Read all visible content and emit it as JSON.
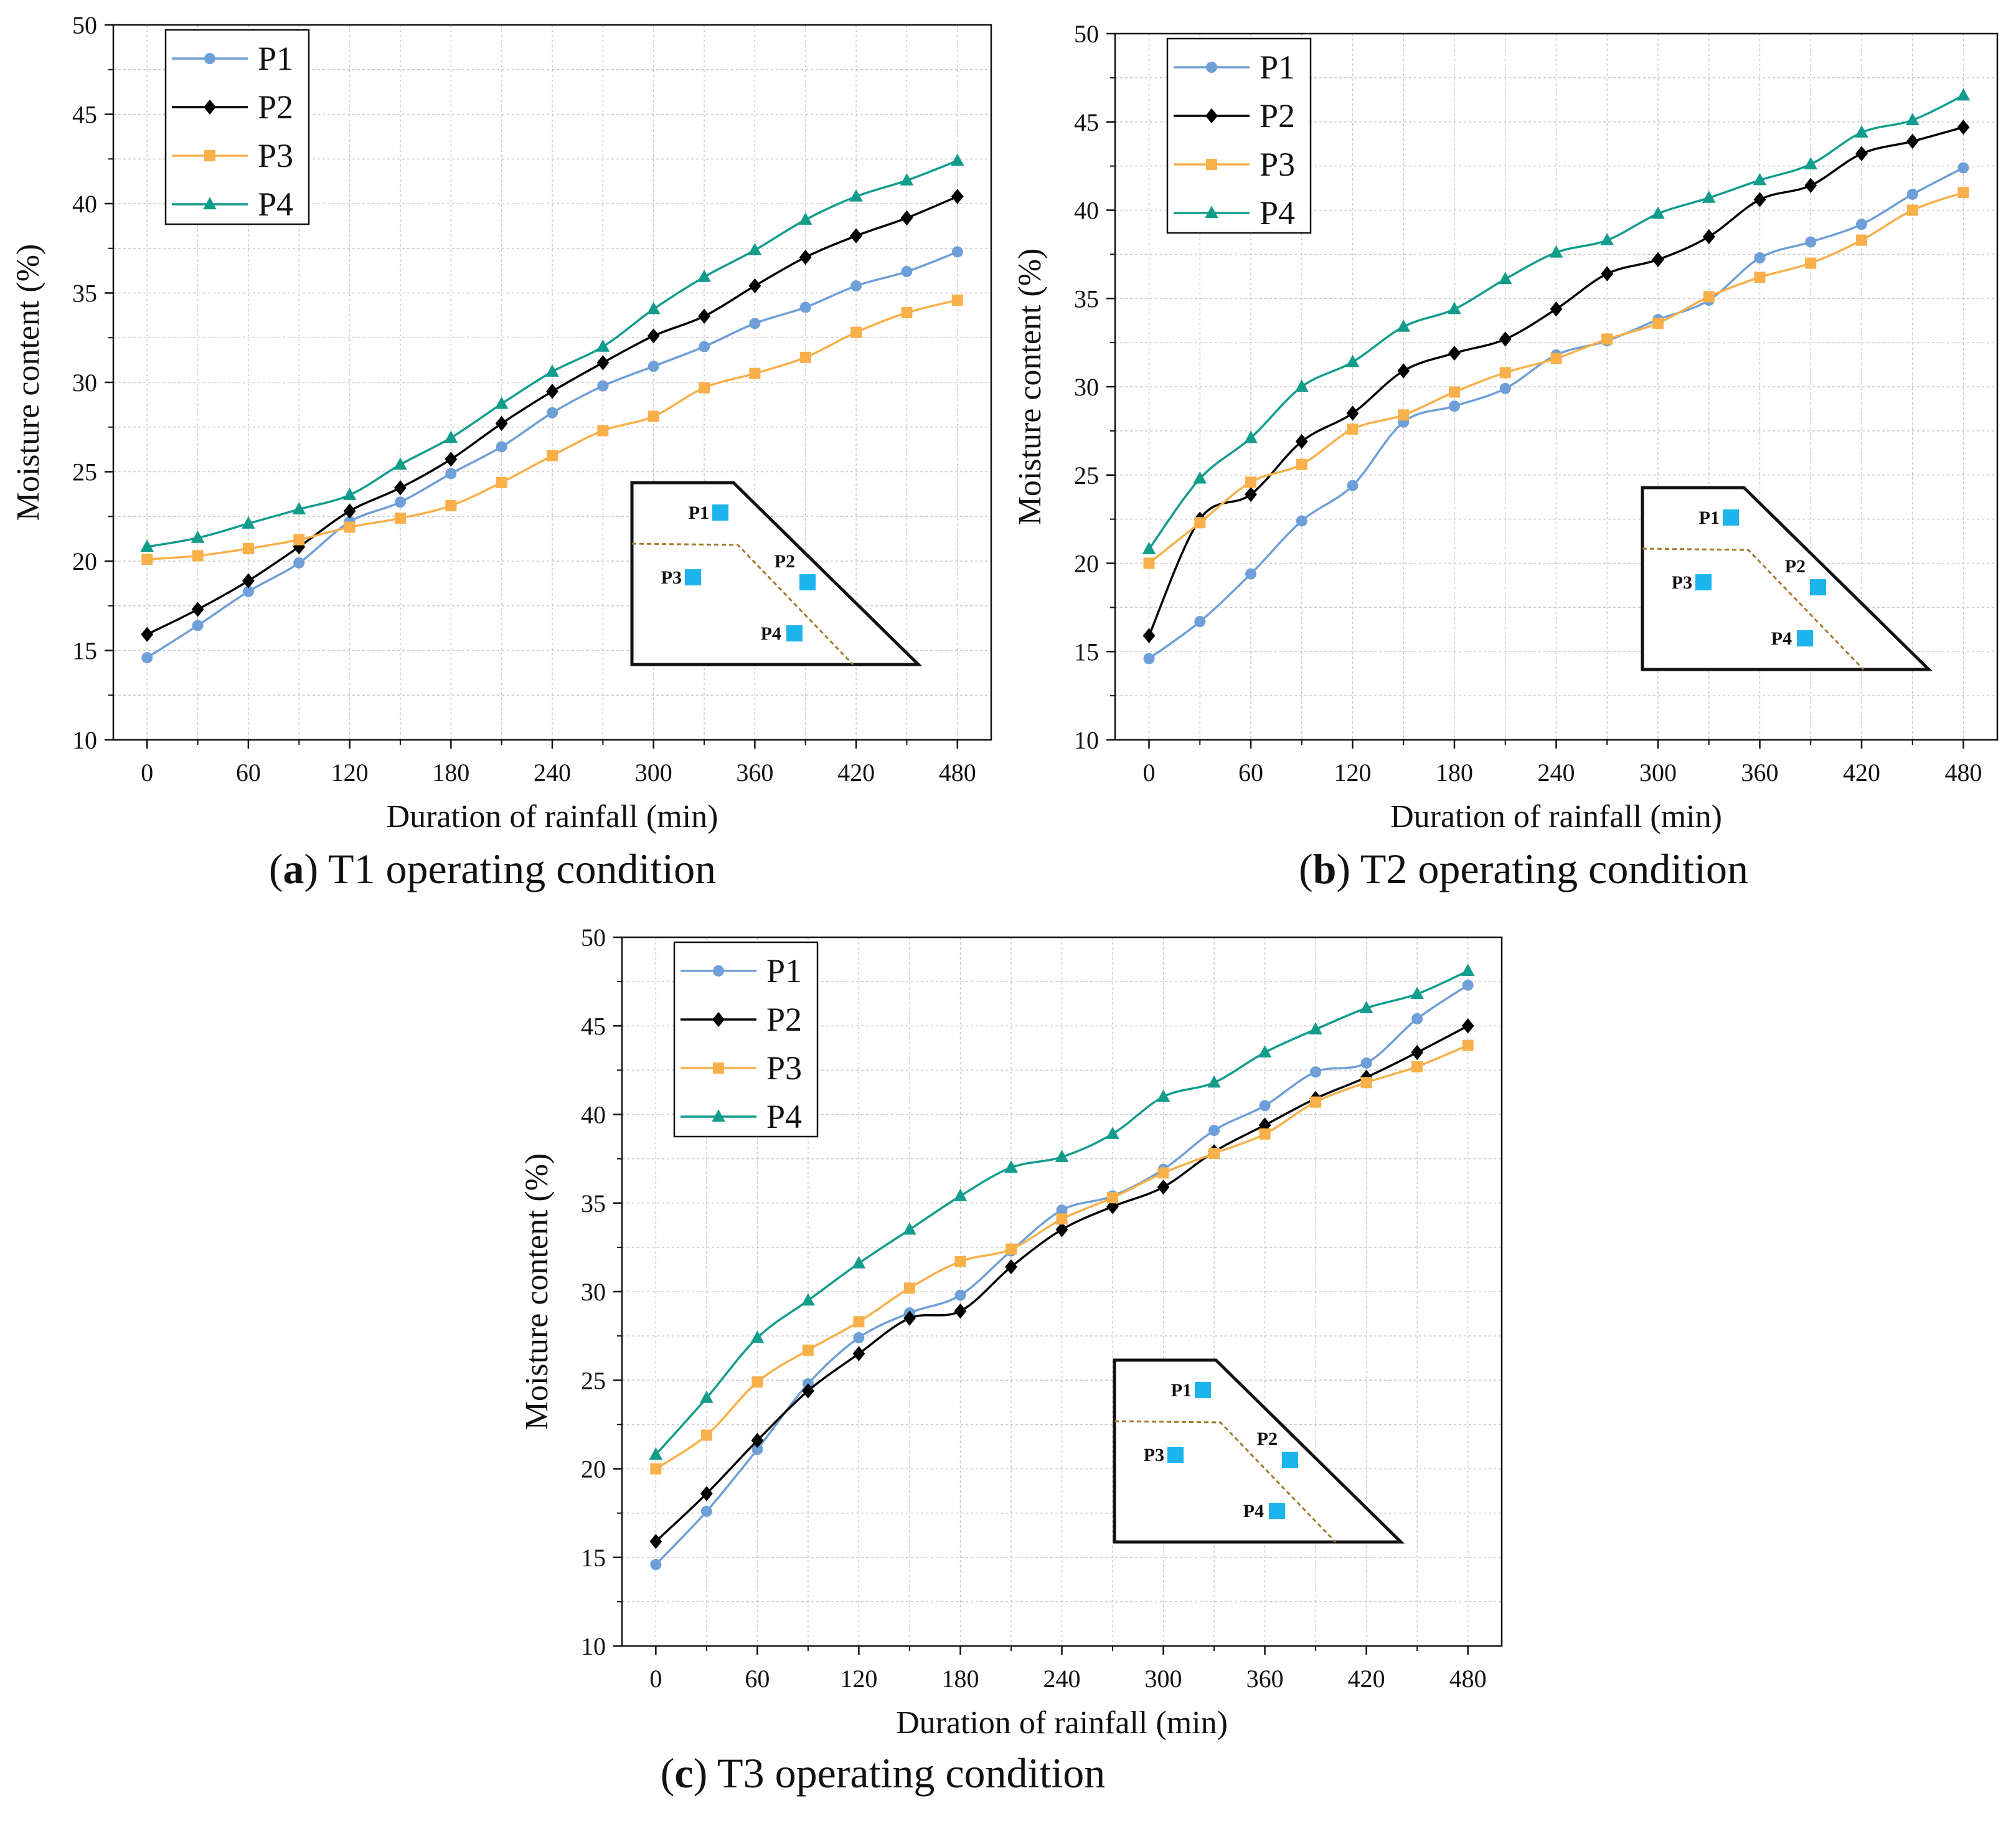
{
  "figure": {
    "panels": [
      {
        "letter": "a",
        "caption_rest": " T1 operating condition"
      },
      {
        "letter": "b",
        "caption_rest": " T2 operating condition"
      },
      {
        "letter": "c",
        "caption_rest": " T3 operating condition"
      }
    ],
    "inset": {
      "points": [
        "P1",
        "P2",
        "P3",
        "P4"
      ]
    },
    "colors": {
      "P1": "#6e9fd8",
      "P2": "#000000",
      "P3": "#f8b04a",
      "P4": "#119c8c",
      "marker_box": "#1cb4ec",
      "dashed_line": "#a07a2a"
    }
  },
  "chart_data": [
    {
      "type": "line",
      "title": "(a) T1 operating condition",
      "xlabel": "Duration of rainfall (min)",
      "ylabel": "Moisture content (%)",
      "xlim": [
        -20,
        500
      ],
      "ylim": [
        10,
        50
      ],
      "xticks": [
        0,
        60,
        120,
        180,
        240,
        300,
        360,
        420,
        480
      ],
      "yticks": [
        10,
        15,
        20,
        25,
        30,
        35,
        40,
        45,
        50
      ],
      "x": [
        0,
        30,
        60,
        90,
        120,
        150,
        180,
        210,
        240,
        270,
        300,
        330,
        360,
        390,
        420,
        450,
        480
      ],
      "legend_position": "top-left",
      "series": [
        {
          "name": "P1",
          "marker": "circle",
          "values": [
            14.6,
            16.4,
            18.3,
            19.9,
            22.2,
            23.3,
            24.9,
            26.4,
            28.3,
            29.8,
            30.9,
            32.0,
            33.3,
            34.2,
            35.4,
            36.2,
            37.3
          ]
        },
        {
          "name": "P2",
          "marker": "diamond",
          "values": [
            15.9,
            17.3,
            18.9,
            20.8,
            22.8,
            24.1,
            25.7,
            27.7,
            29.5,
            31.1,
            32.6,
            33.7,
            35.4,
            37.0,
            38.2,
            39.2,
            40.4
          ]
        },
        {
          "name": "P3",
          "marker": "square",
          "values": [
            20.1,
            20.3,
            20.7,
            21.2,
            21.9,
            22.4,
            23.1,
            24.4,
            25.9,
            27.3,
            28.1,
            29.7,
            30.5,
            31.4,
            32.8,
            33.9,
            34.6
          ]
        },
        {
          "name": "P4",
          "marker": "triangle",
          "values": [
            20.8,
            21.3,
            22.1,
            22.9,
            23.7,
            25.4,
            26.9,
            28.8,
            30.6,
            32.0,
            34.1,
            35.9,
            37.4,
            39.1,
            40.4,
            41.3,
            42.4
          ]
        }
      ]
    },
    {
      "type": "line",
      "title": "(b) T2 operating condition",
      "xlabel": "Duration of rainfall (min)",
      "ylabel": "Moisture content (%)",
      "xlim": [
        -20,
        500
      ],
      "ylim": [
        10,
        50
      ],
      "xticks": [
        0,
        60,
        120,
        180,
        240,
        300,
        360,
        420,
        480
      ],
      "yticks": [
        10,
        15,
        20,
        25,
        30,
        35,
        40,
        45,
        50
      ],
      "x": [
        0,
        30,
        60,
        90,
        120,
        150,
        180,
        210,
        240,
        270,
        300,
        330,
        360,
        390,
        420,
        450,
        480
      ],
      "legend_position": "top-left",
      "series": [
        {
          "name": "P1",
          "marker": "circle",
          "values": [
            14.6,
            16.7,
            19.4,
            22.4,
            24.4,
            28.0,
            28.9,
            29.9,
            31.8,
            32.6,
            33.8,
            34.9,
            37.3,
            38.2,
            39.2,
            40.9,
            42.4
          ]
        },
        {
          "name": "P2",
          "marker": "diamond",
          "values": [
            15.9,
            22.5,
            23.9,
            26.9,
            28.5,
            30.9,
            31.9,
            32.7,
            34.4,
            36.4,
            37.2,
            38.5,
            40.6,
            41.4,
            43.2,
            43.9,
            44.7
          ]
        },
        {
          "name": "P3",
          "marker": "square",
          "values": [
            20.0,
            22.3,
            24.6,
            25.6,
            27.6,
            28.4,
            29.7,
            30.8,
            31.6,
            32.7,
            33.6,
            35.1,
            36.2,
            37.0,
            38.3,
            40.0,
            41.0
          ]
        },
        {
          "name": "P4",
          "marker": "triangle",
          "values": [
            20.8,
            24.8,
            27.1,
            30.0,
            31.4,
            33.4,
            34.4,
            36.1,
            37.6,
            38.3,
            39.8,
            40.7,
            41.7,
            42.6,
            44.4,
            45.1,
            46.5
          ]
        }
      ]
    },
    {
      "type": "line",
      "title": "(c) T3 operating condition",
      "xlabel": "Duration of rainfall (min)",
      "ylabel": "Moisture content (%)",
      "xlim": [
        -20,
        500
      ],
      "ylim": [
        10,
        50
      ],
      "xticks": [
        0,
        60,
        120,
        180,
        240,
        300,
        360,
        420,
        480
      ],
      "yticks": [
        10,
        15,
        20,
        25,
        30,
        35,
        40,
        45,
        50
      ],
      "x": [
        0,
        30,
        60,
        90,
        120,
        150,
        180,
        210,
        240,
        270,
        300,
        330,
        360,
        390,
        420,
        450,
        480
      ],
      "legend_position": "top-left",
      "series": [
        {
          "name": "P1",
          "marker": "circle",
          "values": [
            14.6,
            17.6,
            21.1,
            24.8,
            27.4,
            28.8,
            29.8,
            32.3,
            34.6,
            35.4,
            36.9,
            39.1,
            40.5,
            42.4,
            42.9,
            45.4,
            47.3
          ]
        },
        {
          "name": "P2",
          "marker": "diamond",
          "values": [
            15.9,
            18.6,
            21.6,
            24.4,
            26.5,
            28.5,
            28.9,
            31.4,
            33.5,
            34.8,
            35.9,
            37.9,
            39.4,
            40.9,
            42.1,
            43.5,
            45.0
          ]
        },
        {
          "name": "P3",
          "marker": "square",
          "values": [
            20.0,
            21.9,
            24.9,
            26.7,
            28.3,
            30.2,
            31.7,
            32.4,
            34.1,
            35.3,
            36.7,
            37.8,
            38.9,
            40.7,
            41.8,
            42.7,
            43.9
          ]
        },
        {
          "name": "P4",
          "marker": "triangle",
          "values": [
            20.8,
            24.0,
            27.4,
            29.5,
            31.6,
            33.5,
            35.4,
            37.0,
            37.6,
            38.9,
            41.0,
            41.8,
            43.5,
            44.8,
            46.0,
            46.8,
            48.1
          ]
        }
      ]
    }
  ]
}
